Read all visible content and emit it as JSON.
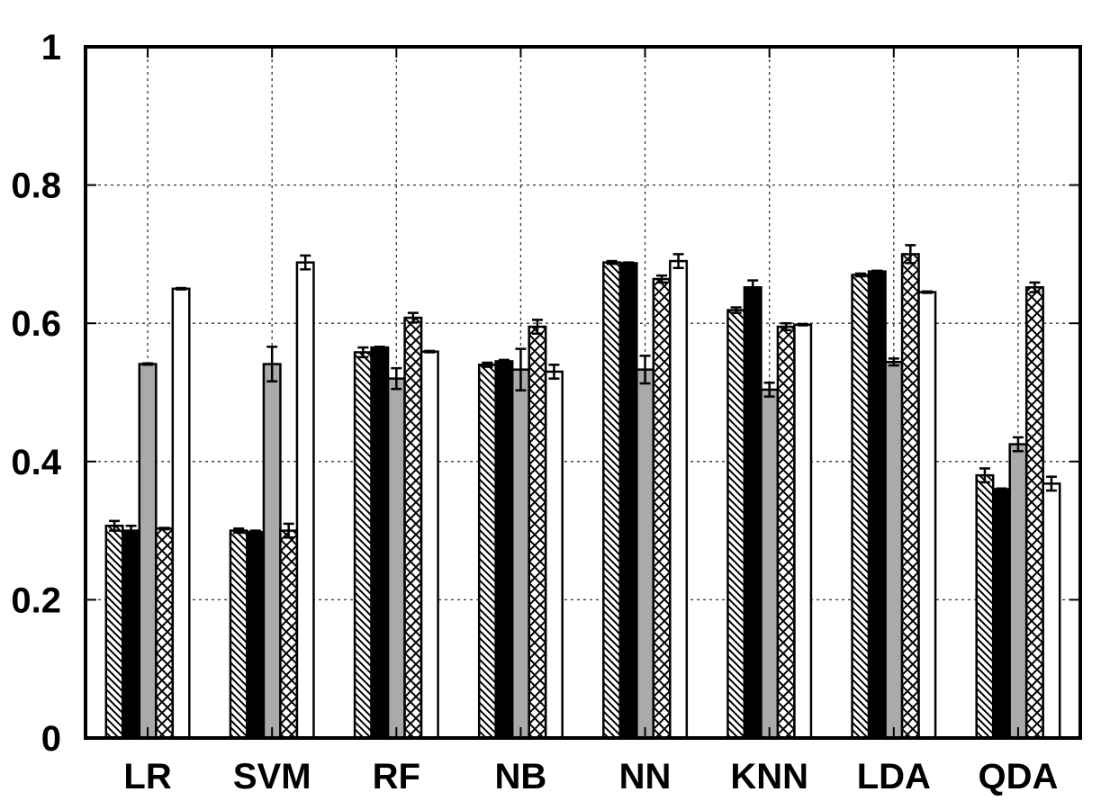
{
  "chart_data": {
    "type": "bar",
    "categories": [
      "LR",
      "SVM",
      "RF",
      "NB",
      "NN",
      "KNN",
      "LDA",
      "QDA"
    ],
    "y_ticks": [
      "0",
      "0.2",
      "0.4",
      "0.6",
      "0.8",
      "1"
    ],
    "ylim": [
      0,
      1
    ],
    "grid": true,
    "legend": "none",
    "title": "",
    "xlabel": "",
    "ylabel": "",
    "series": [
      {
        "style": "diagonal-hatch",
        "values": [
          0.307,
          0.3,
          0.558,
          0.54,
          0.688,
          0.619,
          0.67,
          0.38
        ],
        "errors": [
          0.007,
          0.003,
          0.007,
          0.003,
          0.002,
          0.004,
          0.002,
          0.01
        ]
      },
      {
        "style": "solid-black",
        "values": [
          0.3,
          0.298,
          0.565,
          0.545,
          0.687,
          0.652,
          0.675,
          0.36
        ],
        "errors": [
          0.007,
          0.002,
          0.001,
          0.002,
          0.001,
          0.01,
          0.001,
          0.001
        ]
      },
      {
        "style": "solid-gray",
        "values": [
          0.541,
          0.541,
          0.52,
          0.533,
          0.533,
          0.504,
          0.544,
          0.425
        ],
        "errors": [
          0.001,
          0.025,
          0.015,
          0.03,
          0.02,
          0.01,
          0.005,
          0.01
        ]
      },
      {
        "style": "cross-hatch",
        "values": [
          0.303,
          0.3,
          0.608,
          0.595,
          0.664,
          0.595,
          0.7,
          0.652
        ],
        "errors": [
          0.001,
          0.01,
          0.007,
          0.01,
          0.005,
          0.005,
          0.013,
          0.007
        ]
      },
      {
        "style": "white",
        "values": [
          0.65,
          0.688,
          0.559,
          0.53,
          0.69,
          0.598,
          0.645,
          0.368
        ],
        "errors": [
          0.001,
          0.01,
          0.001,
          0.01,
          0.01,
          0.001,
          0.001,
          0.01
        ]
      }
    ]
  },
  "colors": {
    "frame": "#000000",
    "grid": "#333333",
    "gray_fill": "#aaaaaa",
    "black_fill": "#000000",
    "white_fill": "#ffffff"
  }
}
